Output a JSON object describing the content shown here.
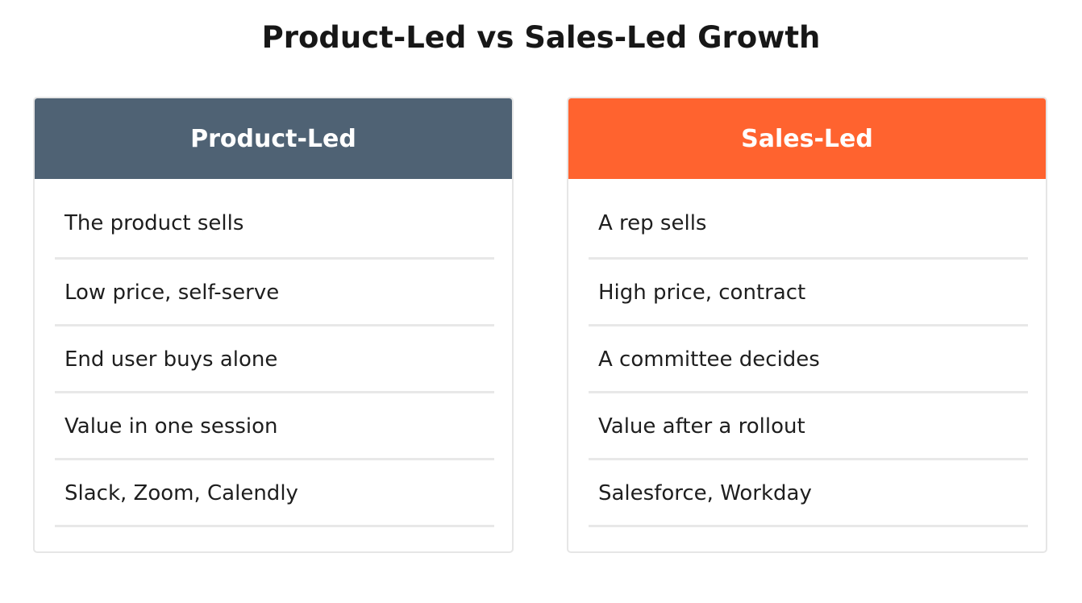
{
  "title": "Product-Led vs Sales-Led Growth",
  "colors": {
    "product_header": "#4f6274",
    "sales_header": "#ff632f"
  },
  "columns": [
    {
      "header": "Product-Led",
      "rows": [
        "The product sells",
        "Low price, self-serve",
        "End user buys alone",
        "Value in one session",
        "Slack, Zoom, Calendly"
      ]
    },
    {
      "header": "Sales-Led",
      "rows": [
        "A rep sells",
        "High price, contract",
        "A committee decides",
        "Value after a rollout",
        "Salesforce, Workday"
      ]
    }
  ]
}
